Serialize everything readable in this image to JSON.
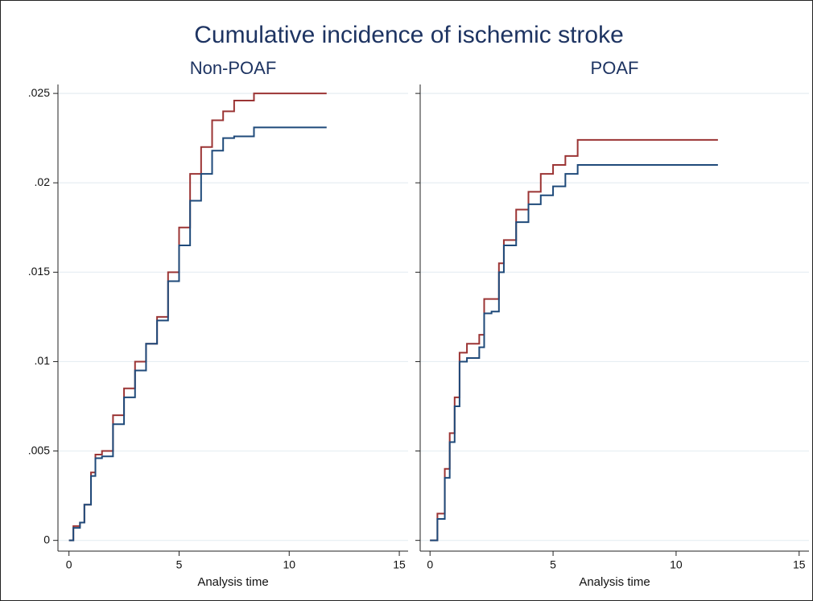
{
  "title": "Cumulative incidence of ischemic stroke",
  "chart_data": [
    {
      "type": "line",
      "title": "Non-POAF",
      "xlabel": "Analysis time",
      "xlim": [
        -0.5,
        15.4
      ],
      "xticks": [
        0,
        5,
        10,
        15
      ],
      "ylim": [
        -0.0006,
        0.0255
      ],
      "yticks": [
        0,
        {
          "value": 0.005,
          "label": ".005"
        },
        {
          "value": 0.01,
          "label": ".01"
        },
        {
          "value": 0.015,
          "label": ".015"
        },
        {
          "value": 0.02,
          "label": ".02"
        },
        {
          "value": 0.025,
          "label": ".025"
        }
      ],
      "grid": true,
      "x": [
        0,
        0.2,
        0.5,
        0.7,
        1.0,
        1.2,
        1.5,
        2.0,
        2.5,
        3.0,
        3.5,
        4.0,
        4.5,
        5.0,
        5.5,
        6.0,
        6.5,
        7.0,
        7.5,
        8.4,
        11.7
      ],
      "series": [
        {
          "color": "#9b3434",
          "values": [
            0,
            0.0008,
            0.001,
            0.002,
            0.0038,
            0.0048,
            0.005,
            0.007,
            0.0085,
            0.01,
            0.011,
            0.0125,
            0.015,
            0.0175,
            0.0205,
            0.022,
            0.0235,
            0.024,
            0.0246,
            0.025,
            0.025
          ]
        },
        {
          "color": "#1f4a7a",
          "values": [
            0,
            0.0007,
            0.001,
            0.002,
            0.0036,
            0.0046,
            0.0047,
            0.0065,
            0.008,
            0.0095,
            0.011,
            0.0123,
            0.0145,
            0.0165,
            0.019,
            0.0205,
            0.0218,
            0.0225,
            0.0226,
            0.0231,
            0.0231
          ]
        }
      ]
    },
    {
      "type": "line",
      "title": "POAF",
      "xlabel": "Analysis time",
      "xlim": [
        -0.4,
        15.4
      ],
      "xticks": [
        0,
        5,
        10,
        15
      ],
      "ylim": [
        -0.0006,
        0.0255
      ],
      "grid": true,
      "x": [
        0,
        0.3,
        0.6,
        0.8,
        1.0,
        1.2,
        1.5,
        2.0,
        2.2,
        2.5,
        2.8,
        3.0,
        3.5,
        4.0,
        4.5,
        5.0,
        5.5,
        6.0,
        11.7
      ],
      "series": [
        {
          "color": "#9b3434",
          "values": [
            0,
            0.0015,
            0.004,
            0.006,
            0.008,
            0.0105,
            0.011,
            0.0115,
            0.0135,
            0.0135,
            0.0155,
            0.0168,
            0.0185,
            0.0195,
            0.0205,
            0.021,
            0.0215,
            0.0224,
            0.0224
          ]
        },
        {
          "color": "#1f4a7a",
          "values": [
            0,
            0.0012,
            0.0035,
            0.0055,
            0.0075,
            0.01,
            0.0102,
            0.0108,
            0.0127,
            0.0128,
            0.015,
            0.0165,
            0.0178,
            0.0188,
            0.0193,
            0.0198,
            0.0205,
            0.021,
            0.021
          ]
        }
      ]
    }
  ]
}
